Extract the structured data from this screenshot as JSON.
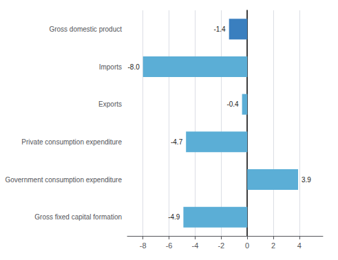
{
  "chart_data": {
    "type": "bar",
    "orientation": "horizontal",
    "categories": [
      "Gross fixed capital formation",
      "Government consumption expenditure",
      "Private consumption expenditure",
      "Exports",
      "Imports",
      "Gross domestic product"
    ],
    "values": [
      -4.9,
      3.9,
      -4.7,
      -0.4,
      -8.0,
      -1.4
    ],
    "value_labels": [
      "-4.9",
      "3.9",
      "-4.7",
      "-0.4",
      "-8.0",
      "-1.4"
    ],
    "colors": [
      "#5BAED6",
      "#5BAED6",
      "#5BAED6",
      "#5BAED6",
      "#5BAED6",
      "#3A7FBF"
    ],
    "xlim": [
      -9.2,
      5.8
    ],
    "xticks": [
      -8,
      -6,
      -4,
      -2,
      0,
      2,
      4
    ],
    "grid": true,
    "data_labels": true
  }
}
